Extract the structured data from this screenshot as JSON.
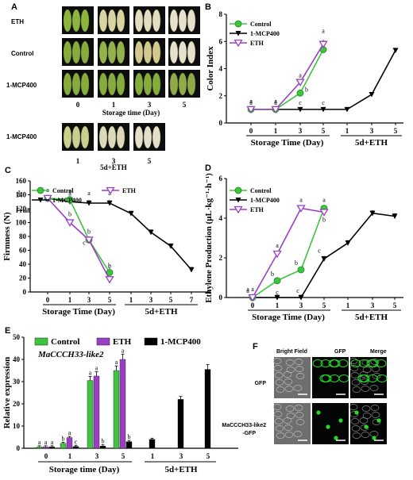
{
  "colors": {
    "control": "#3ec43e",
    "mcp": "#000000",
    "eth": "#9b3fc2",
    "gfp": "#22dd22"
  },
  "panels": {
    "A": {
      "letter": "A",
      "row_labels": [
        "ETH",
        "Control",
        "1-MCP400",
        "1-MCP400"
      ],
      "x_ticks": [
        "0",
        "1",
        "3",
        "5"
      ],
      "x_title": "Storage time (Day)",
      "sub_ticks": [
        "1",
        "3",
        "5"
      ],
      "sub_title": "5d+ETH"
    },
    "F": {
      "letter": "F",
      "col_titles": [
        "Bright Field",
        "GFP",
        "Merge"
      ],
      "row_labels": [
        "GFP",
        "MaCCCH33-like2",
        "-GFP"
      ]
    }
  },
  "chart_data": [
    {
      "panel": "B",
      "type": "line",
      "ylabel": "Color Index",
      "ylim": [
        0,
        8
      ],
      "yticks": [
        "0",
        "2",
        "4",
        "6",
        "8"
      ],
      "x_ticks": [
        "0",
        "1",
        "3",
        "5",
        "1",
        "3",
        "5"
      ],
      "x_group_labels": [
        "Storage Time (Day)",
        "5d+ETH"
      ],
      "legend": [
        "Control",
        "1-MCP400",
        "ETH"
      ],
      "series": [
        {
          "name": "Control",
          "x": [
            "0",
            "1",
            "3",
            "5"
          ],
          "values": [
            1.0,
            1.0,
            2.2,
            5.4
          ],
          "letters": [
            "a",
            "a",
            "b",
            "a"
          ]
        },
        {
          "name": "1-MCP400",
          "x": [
            "0",
            "1",
            "3",
            "5",
            "1",
            "3",
            "5"
          ],
          "values": [
            1.0,
            1.0,
            1.0,
            1.0,
            1.0,
            2.1,
            5.35
          ],
          "letters": [
            "a",
            "a",
            "c",
            "c",
            "",
            "",
            ""
          ]
        },
        {
          "name": "ETH",
          "x": [
            "0",
            "1",
            "3",
            "5"
          ],
          "values": [
            1.0,
            1.0,
            3.0,
            5.8
          ],
          "letters": [
            "a",
            "a",
            "a",
            "a"
          ]
        }
      ]
    },
    {
      "panel": "C",
      "type": "line",
      "ylabel": "Firmness (N)",
      "ylim": [
        0,
        160
      ],
      "yticks": [
        "0",
        "20",
        "40",
        "60",
        "80",
        "100",
        "120",
        "140",
        "160"
      ],
      "x_ticks": [
        "0",
        "1",
        "3",
        "5",
        "1",
        "3",
        "5",
        "7"
      ],
      "x_group_labels": [
        "Storage Time (Day)",
        "5d+ETH"
      ],
      "legend": [
        "Control",
        "1-MCP400",
        "ETH"
      ],
      "annotation": "Fruit",
      "series": [
        {
          "name": "Control",
          "x": [
            "0",
            "1",
            "3",
            "5"
          ],
          "values": [
            135,
            133,
            75,
            28
          ],
          "letters": [
            "a",
            "a",
            "b",
            "b"
          ]
        },
        {
          "name": "1-MCP400",
          "x": [
            "0",
            "1",
            "3",
            "5",
            "1",
            "3",
            "5",
            "7"
          ],
          "values": [
            135,
            130,
            128,
            128,
            113,
            86,
            66,
            32
          ],
          "letters": [
            "a",
            "a",
            "a",
            "a",
            "",
            "",
            "",
            ""
          ]
        },
        {
          "name": "ETH",
          "x": [
            "0",
            "1",
            "3",
            "5"
          ],
          "values": [
            135,
            100,
            75,
            18
          ],
          "letters": [
            "a",
            "b",
            "c",
            "c"
          ]
        }
      ]
    },
    {
      "panel": "D",
      "type": "line",
      "ylabel": "Ethylene Production (μL·kg⁻¹·h⁻¹)",
      "ylim": [
        0,
        6
      ],
      "yticks": [
        "0",
        "2",
        "4",
        "6"
      ],
      "x_ticks": [
        "0",
        "1",
        "3",
        "5",
        "1",
        "3",
        "5"
      ],
      "x_group_labels": [
        "Storage Time (Day)",
        "5d+ETH"
      ],
      "legend": [
        "Control",
        "1-MCP400",
        "ETH"
      ],
      "series": [
        {
          "name": "Control",
          "x": [
            "0",
            "1",
            "3",
            "5"
          ],
          "values": [
            0.0,
            0.85,
            1.4,
            4.5
          ],
          "letters": [
            "a",
            "b",
            "b",
            "a"
          ]
        },
        {
          "name": "1-MCP400",
          "x": [
            "0",
            "1",
            "3",
            "5",
            "1",
            "3",
            "5"
          ],
          "values": [
            0.0,
            0.0,
            0.0,
            1.95,
            2.75,
            4.25,
            4.1
          ],
          "letters": [
            "a",
            "c",
            "c",
            "c",
            "",
            "",
            ""
          ]
        },
        {
          "name": "ETH",
          "x": [
            "0",
            "1",
            "3",
            "5"
          ],
          "values": [
            0.0,
            2.2,
            4.5,
            4.3
          ],
          "letters": [
            "a",
            "a",
            "a",
            "b"
          ]
        }
      ]
    },
    {
      "panel": "E",
      "type": "bar",
      "title": "MaCCCH33-like2",
      "ylabel": "Relative expression",
      "ylim": [
        0,
        50
      ],
      "yticks": [
        "0",
        "10",
        "20",
        "30",
        "40",
        "50"
      ],
      "x_ticks": [
        "0",
        "1",
        "3",
        "5",
        "1",
        "3",
        "5"
      ],
      "x_group_labels": [
        "Storage time (Day)",
        "5d+ETH"
      ],
      "legend": [
        "Control",
        "ETH",
        "1-MCP400"
      ],
      "groups": [
        {
          "tick": "0",
          "bars": [
            {
              "series": "Control",
              "value": 0.6,
              "letter": "a"
            },
            {
              "series": "ETH",
              "value": 0.6,
              "letter": "a"
            },
            {
              "series": "1-MCP400",
              "value": 0.6,
              "letter": "a"
            }
          ]
        },
        {
          "tick": "1",
          "bars": [
            {
              "series": "Control",
              "value": 2.2,
              "letter": "b"
            },
            {
              "series": "ETH",
              "value": 4.8,
              "letter": "a"
            },
            {
              "series": "1-MCP400",
              "value": 0.8,
              "letter": "c"
            }
          ]
        },
        {
          "tick": "3",
          "bars": [
            {
              "series": "Control",
              "value": 30.5,
              "letter": "a"
            },
            {
              "series": "ETH",
              "value": 32.5,
              "letter": "a"
            },
            {
              "series": "1-MCP400",
              "value": 1.0,
              "letter": "b"
            }
          ]
        },
        {
          "tick": "5",
          "bars": [
            {
              "series": "Control",
              "value": 35.0,
              "letter": "a"
            },
            {
              "series": "ETH",
              "value": 40.0,
              "letter": "a"
            },
            {
              "series": "1-MCP400",
              "value": 3.0,
              "letter": "b"
            }
          ]
        },
        {
          "tick": "1",
          "bars": [
            {
              "series": "1-MCP400",
              "value": 4.0,
              "letter": ""
            }
          ]
        },
        {
          "tick": "3",
          "bars": [
            {
              "series": "1-MCP400",
              "value": 22.0,
              "letter": ""
            }
          ]
        },
        {
          "tick": "5",
          "bars": [
            {
              "series": "1-MCP400",
              "value": 35.5,
              "letter": ""
            }
          ]
        }
      ]
    }
  ]
}
